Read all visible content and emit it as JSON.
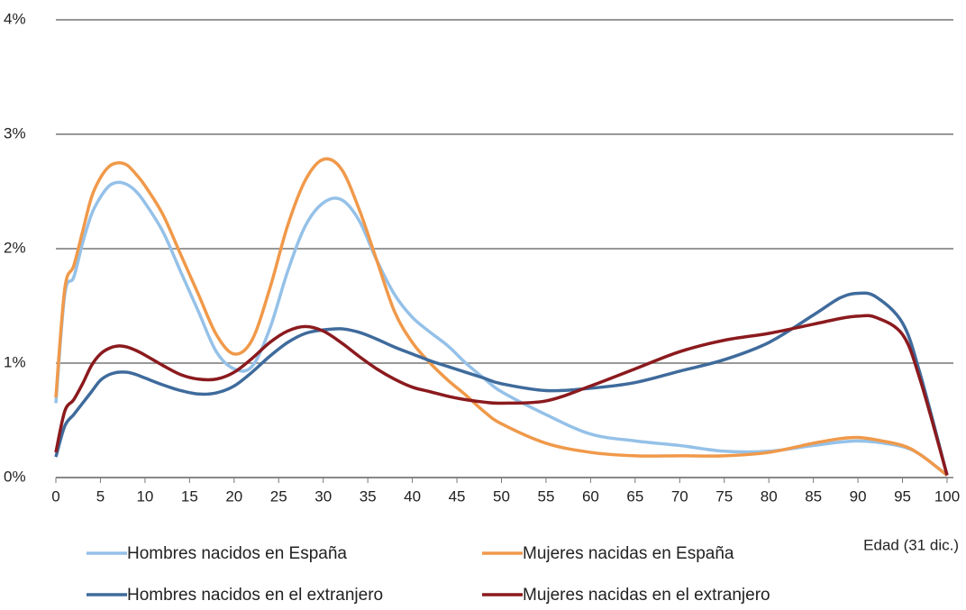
{
  "chart_data": {
    "type": "line",
    "xlabel": "Edad (31 dic.)",
    "x": [
      0,
      1,
      2,
      3,
      4,
      5,
      6,
      7,
      8,
      9,
      10,
      12,
      14,
      16,
      18,
      20,
      22,
      24,
      26,
      28,
      30,
      32,
      34,
      36,
      38,
      40,
      42,
      44,
      46,
      48,
      50,
      55,
      60,
      65,
      70,
      75,
      80,
      85,
      88,
      90,
      92,
      95,
      97,
      100
    ],
    "series": [
      {
        "name": "Hombres nacidos en España",
        "color": "#95c1e8",
        "values": [
          0.65,
          1.6,
          1.75,
          2.05,
          2.3,
          2.45,
          2.55,
          2.58,
          2.56,
          2.5,
          2.4,
          2.15,
          1.8,
          1.45,
          1.1,
          0.95,
          0.97,
          1.3,
          1.8,
          2.2,
          2.4,
          2.43,
          2.25,
          1.9,
          1.6,
          1.4,
          1.27,
          1.15,
          1.0,
          0.87,
          0.75,
          0.55,
          0.38,
          0.32,
          0.28,
          0.23,
          0.23,
          0.28,
          0.31,
          0.32,
          0.31,
          0.27,
          0.2,
          0.02
        ]
      },
      {
        "name": "Mujeres nacidas en España",
        "color": "#f0994a",
        "values": [
          0.7,
          1.65,
          1.85,
          2.15,
          2.45,
          2.62,
          2.72,
          2.75,
          2.73,
          2.65,
          2.55,
          2.3,
          1.95,
          1.6,
          1.25,
          1.08,
          1.2,
          1.65,
          2.2,
          2.6,
          2.78,
          2.7,
          2.35,
          1.9,
          1.45,
          1.18,
          1.0,
          0.85,
          0.72,
          0.58,
          0.47,
          0.3,
          0.22,
          0.19,
          0.19,
          0.19,
          0.22,
          0.3,
          0.34,
          0.35,
          0.33,
          0.28,
          0.2,
          0.02
        ]
      },
      {
        "name": "Hombres nacidos en el extranjero",
        "color": "#3f6b9c",
        "values": [
          0.18,
          0.45,
          0.55,
          0.65,
          0.75,
          0.85,
          0.9,
          0.92,
          0.92,
          0.9,
          0.87,
          0.81,
          0.76,
          0.73,
          0.74,
          0.8,
          0.92,
          1.06,
          1.18,
          1.26,
          1.29,
          1.3,
          1.27,
          1.21,
          1.14,
          1.08,
          1.02,
          0.97,
          0.92,
          0.87,
          0.82,
          0.76,
          0.78,
          0.83,
          0.93,
          1.03,
          1.18,
          1.42,
          1.57,
          1.61,
          1.58,
          1.35,
          0.9,
          0.02
        ]
      },
      {
        "name": "Mujeres nacidas en el extranjero",
        "color": "#8b1a1e",
        "values": [
          0.22,
          0.58,
          0.68,
          0.82,
          0.98,
          1.08,
          1.13,
          1.15,
          1.14,
          1.11,
          1.07,
          0.98,
          0.9,
          0.86,
          0.86,
          0.92,
          1.04,
          1.18,
          1.28,
          1.32,
          1.28,
          1.18,
          1.06,
          0.95,
          0.86,
          0.79,
          0.75,
          0.71,
          0.68,
          0.66,
          0.65,
          0.67,
          0.8,
          0.95,
          1.1,
          1.2,
          1.26,
          1.34,
          1.39,
          1.41,
          1.4,
          1.25,
          0.85,
          0.02
        ]
      }
    ],
    "xlim": [
      0,
      100
    ],
    "xticks": [
      0,
      5,
      10,
      15,
      20,
      25,
      30,
      35,
      40,
      45,
      50,
      55,
      60,
      65,
      70,
      75,
      80,
      85,
      90,
      95,
      100
    ],
    "ylim": [
      0,
      4
    ],
    "yticks": [
      {
        "value": 0,
        "label": "0%"
      },
      {
        "value": 1,
        "label": "1%"
      },
      {
        "value": 2,
        "label": "2%"
      },
      {
        "value": 3,
        "label": "3%"
      },
      {
        "value": 4,
        "label": "4%"
      }
    ],
    "grid": true,
    "legend": "bottom"
  }
}
